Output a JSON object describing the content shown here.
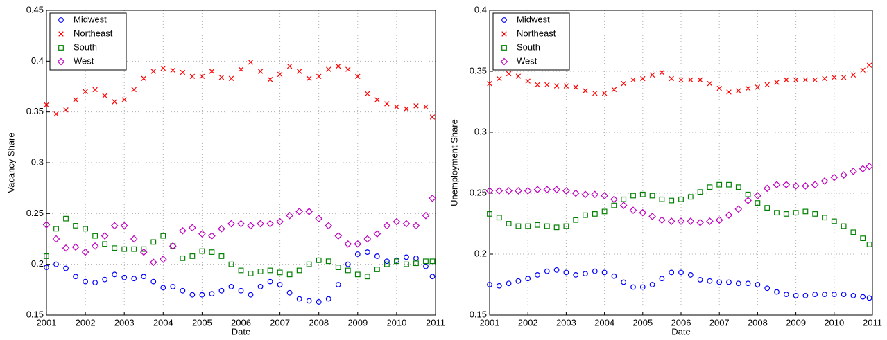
{
  "chart_data": [
    {
      "type": "scatter",
      "xlabel": "Date",
      "ylabel": "Vacancy Share",
      "x": [
        2001,
        2001.25,
        2001.5,
        2001.75,
        2002,
        2002.25,
        2002.5,
        2002.75,
        2003,
        2003.25,
        2003.5,
        2003.75,
        2004,
        2004.25,
        2004.5,
        2004.75,
        2005,
        2005.25,
        2005.5,
        2005.75,
        2006,
        2006.25,
        2006.5,
        2006.75,
        2007,
        2007.25,
        2007.5,
        2007.75,
        2008,
        2008.25,
        2008.5,
        2008.75,
        2009,
        2009.25,
        2009.5,
        2009.75,
        2010,
        2010.25,
        2010.5,
        2010.75,
        2010.92
      ],
      "xlim": [
        2001,
        2011
      ],
      "xticks": [
        2001,
        2002,
        2003,
        2004,
        2005,
        2006,
        2007,
        2008,
        2009,
        2010,
        2011
      ],
      "ylim": [
        0.15,
        0.45
      ],
      "yticks": [
        0.15,
        0.2,
        0.25,
        0.3,
        0.35,
        0.4,
        0.45
      ],
      "grid": true,
      "legend": "upper-left",
      "series": [
        {
          "name": "Midwest",
          "color": "#0000ff",
          "marker": "o",
          "values": [
            0.197,
            0.2,
            0.196,
            0.188,
            0.183,
            0.182,
            0.185,
            0.19,
            0.187,
            0.186,
            0.188,
            0.183,
            0.177,
            0.178,
            0.174,
            0.17,
            0.17,
            0.171,
            0.174,
            0.178,
            0.174,
            0.17,
            0.178,
            0.183,
            0.18,
            0.172,
            0.166,
            0.164,
            0.163,
            0.166,
            0.18,
            0.2,
            0.21,
            0.212,
            0.208,
            0.203,
            0.204,
            0.207,
            0.206,
            0.198,
            0.188
          ]
        },
        {
          "name": "Northeast",
          "color": "#ff0000",
          "marker": "x",
          "values": [
            0.357,
            0.348,
            0.352,
            0.362,
            0.37,
            0.372,
            0.366,
            0.36,
            0.362,
            0.372,
            0.383,
            0.39,
            0.393,
            0.391,
            0.389,
            0.385,
            0.385,
            0.39,
            0.384,
            0.383,
            0.392,
            0.399,
            0.39,
            0.382,
            0.387,
            0.395,
            0.39,
            0.383,
            0.385,
            0.392,
            0.395,
            0.392,
            0.385,
            0.368,
            0.362,
            0.358,
            0.355,
            0.353,
            0.356,
            0.355,
            0.345
          ]
        },
        {
          "name": "South",
          "color": "#008000",
          "marker": "s",
          "values": [
            0.208,
            0.235,
            0.245,
            0.238,
            0.235,
            0.228,
            0.22,
            0.216,
            0.215,
            0.215,
            0.215,
            0.222,
            0.228,
            0.218,
            0.206,
            0.208,
            0.213,
            0.212,
            0.208,
            0.2,
            0.194,
            0.191,
            0.193,
            0.194,
            0.192,
            0.19,
            0.194,
            0.2,
            0.204,
            0.203,
            0.197,
            0.194,
            0.19,
            0.188,
            0.195,
            0.2,
            0.203,
            0.2,
            0.201,
            0.203,
            0.203
          ]
        },
        {
          "name": "West",
          "color": "#bf00bf",
          "marker": "d",
          "values": [
            0.239,
            0.225,
            0.216,
            0.217,
            0.212,
            0.218,
            0.228,
            0.238,
            0.238,
            0.225,
            0.212,
            0.202,
            0.205,
            0.218,
            0.233,
            0.236,
            0.23,
            0.228,
            0.235,
            0.24,
            0.24,
            0.238,
            0.24,
            0.24,
            0.242,
            0.248,
            0.252,
            0.252,
            0.245,
            0.238,
            0.228,
            0.22,
            0.22,
            0.225,
            0.23,
            0.238,
            0.242,
            0.24,
            0.238,
            0.248,
            0.265
          ]
        }
      ]
    },
    {
      "type": "scatter",
      "xlabel": "Date",
      "ylabel": "Unemployment Share",
      "x": [
        2001,
        2001.25,
        2001.5,
        2001.75,
        2002,
        2002.25,
        2002.5,
        2002.75,
        2003,
        2003.25,
        2003.5,
        2003.75,
        2004,
        2004.25,
        2004.5,
        2004.75,
        2005,
        2005.25,
        2005.5,
        2005.75,
        2006,
        2006.25,
        2006.5,
        2006.75,
        2007,
        2007.25,
        2007.5,
        2007.75,
        2008,
        2008.25,
        2008.5,
        2008.75,
        2009,
        2009.25,
        2009.5,
        2009.75,
        2010,
        2010.25,
        2010.5,
        2010.75,
        2010.92
      ],
      "xlim": [
        2001,
        2011
      ],
      "xticks": [
        2001,
        2002,
        2003,
        2004,
        2005,
        2006,
        2007,
        2008,
        2009,
        2010,
        2011
      ],
      "ylim": [
        0.15,
        0.4
      ],
      "yticks": [
        0.15,
        0.2,
        0.25,
        0.3,
        0.35,
        0.4
      ],
      "grid": true,
      "legend": "upper-left",
      "series": [
        {
          "name": "Midwest",
          "color": "#0000ff",
          "marker": "o",
          "values": [
            0.175,
            0.174,
            0.176,
            0.178,
            0.18,
            0.183,
            0.186,
            0.187,
            0.185,
            0.183,
            0.184,
            0.186,
            0.185,
            0.182,
            0.177,
            0.173,
            0.173,
            0.175,
            0.18,
            0.185,
            0.185,
            0.183,
            0.179,
            0.178,
            0.177,
            0.177,
            0.176,
            0.176,
            0.175,
            0.172,
            0.169,
            0.167,
            0.166,
            0.166,
            0.167,
            0.167,
            0.167,
            0.167,
            0.166,
            0.165,
            0.164
          ]
        },
        {
          "name": "Northeast",
          "color": "#ff0000",
          "marker": "x",
          "values": [
            0.34,
            0.344,
            0.348,
            0.346,
            0.342,
            0.339,
            0.339,
            0.338,
            0.338,
            0.337,
            0.334,
            0.332,
            0.332,
            0.335,
            0.34,
            0.343,
            0.344,
            0.347,
            0.349,
            0.344,
            0.343,
            0.343,
            0.343,
            0.34,
            0.336,
            0.333,
            0.334,
            0.336,
            0.337,
            0.339,
            0.341,
            0.343,
            0.343,
            0.343,
            0.343,
            0.344,
            0.345,
            0.345,
            0.347,
            0.351,
            0.355
          ]
        },
        {
          "name": "South",
          "color": "#008000",
          "marker": "s",
          "values": [
            0.233,
            0.23,
            0.225,
            0.223,
            0.223,
            0.224,
            0.223,
            0.222,
            0.223,
            0.228,
            0.232,
            0.233,
            0.235,
            0.24,
            0.245,
            0.248,
            0.249,
            0.248,
            0.245,
            0.244,
            0.245,
            0.247,
            0.251,
            0.255,
            0.257,
            0.257,
            0.255,
            0.249,
            0.242,
            0.238,
            0.234,
            0.233,
            0.234,
            0.235,
            0.233,
            0.23,
            0.227,
            0.223,
            0.218,
            0.213,
            0.208
          ]
        },
        {
          "name": "West",
          "color": "#bf00bf",
          "marker": "d",
          "values": [
            0.252,
            0.252,
            0.252,
            0.252,
            0.252,
            0.253,
            0.253,
            0.253,
            0.252,
            0.25,
            0.249,
            0.249,
            0.248,
            0.245,
            0.24,
            0.236,
            0.234,
            0.231,
            0.228,
            0.227,
            0.227,
            0.227,
            0.226,
            0.227,
            0.228,
            0.232,
            0.237,
            0.244,
            0.248,
            0.254,
            0.257,
            0.257,
            0.256,
            0.256,
            0.257,
            0.26,
            0.263,
            0.265,
            0.268,
            0.27,
            0.272
          ]
        }
      ]
    }
  ]
}
